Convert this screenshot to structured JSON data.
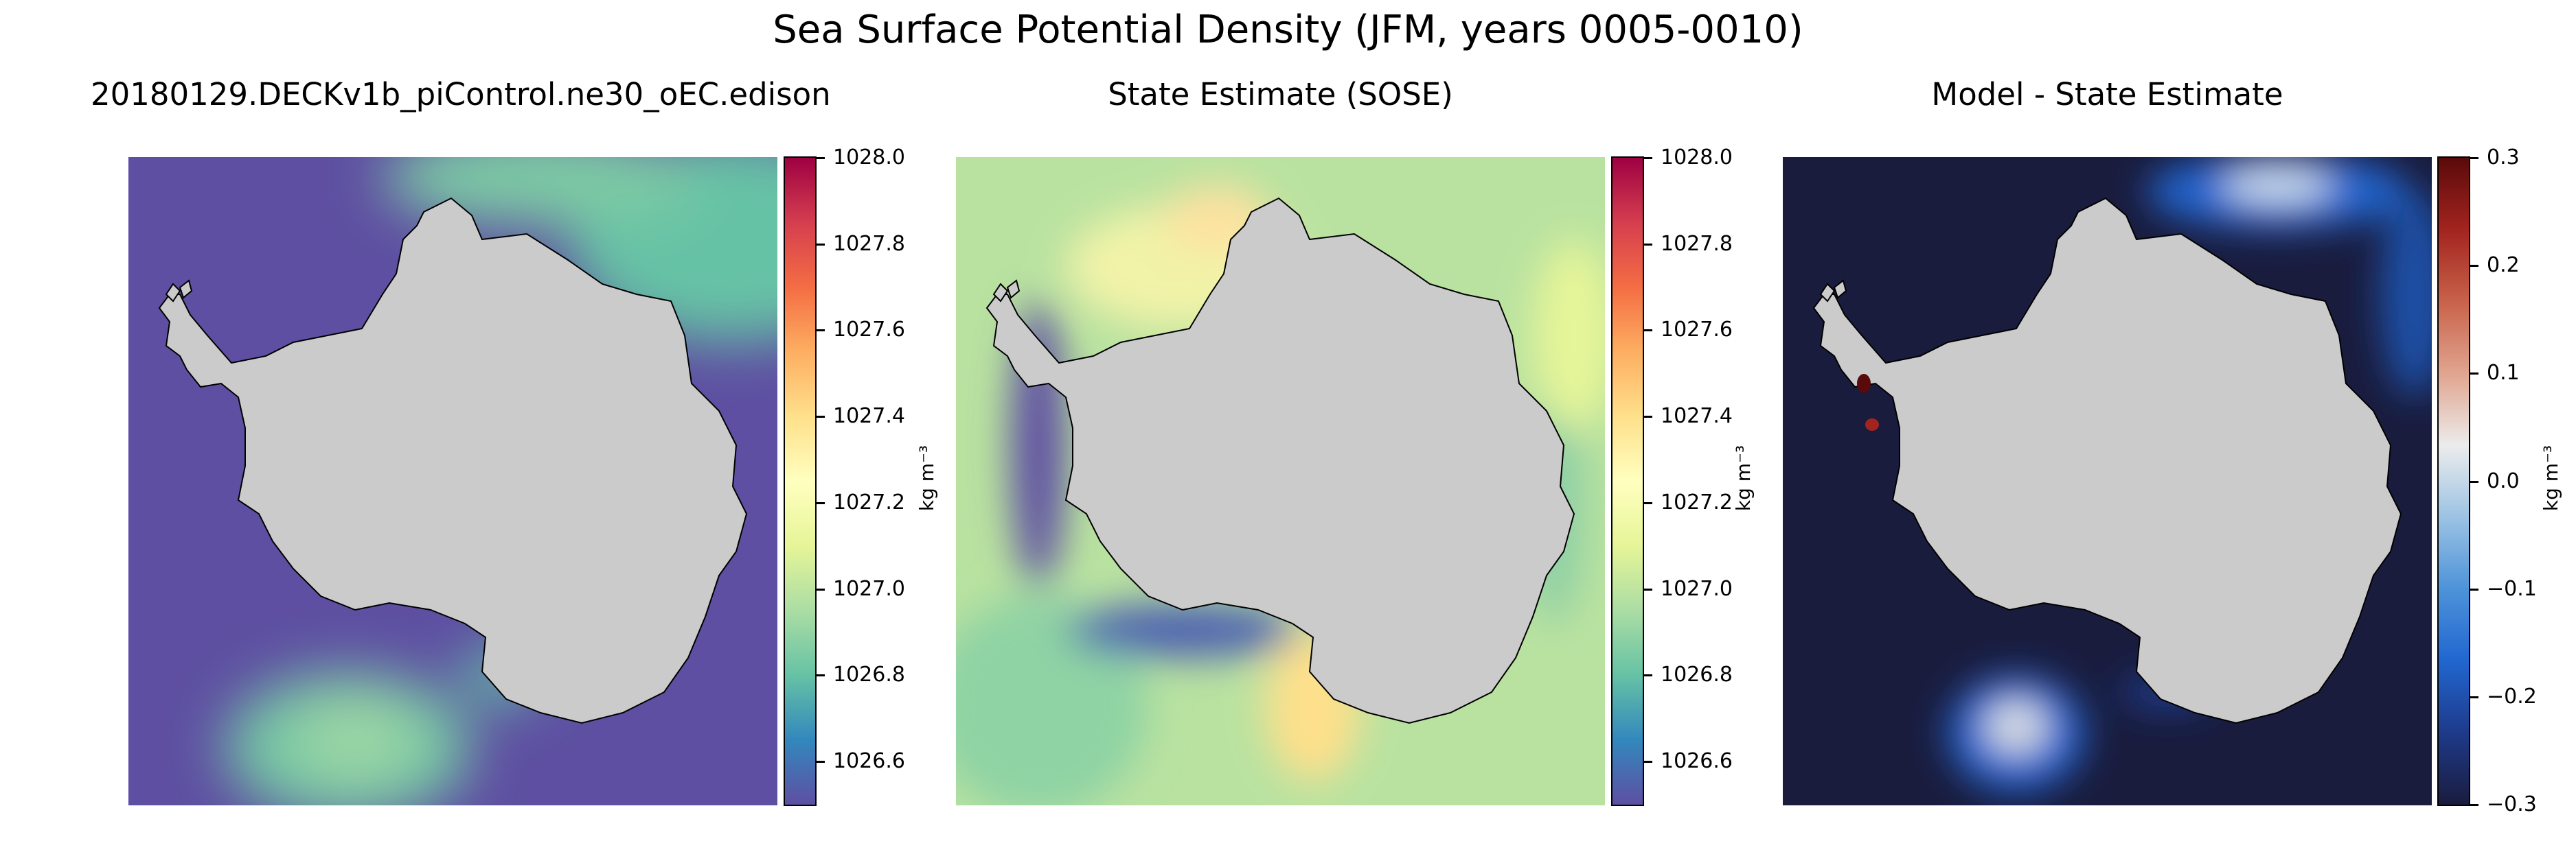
{
  "figure": {
    "suptitle": "Sea Surface Potential Density (JFM, years 0005-0010)"
  },
  "colors": {
    "land": "#cbcbcb",
    "coast": "#000000",
    "density_scale": [
      "#5e4fa2",
      "#3288bd",
      "#66c2a5",
      "#abdda4",
      "#e6f598",
      "#ffffbf",
      "#fee08b",
      "#fdae61",
      "#f46d43",
      "#d53e4f",
      "#9e0142"
    ],
    "diff_scale": [
      "#1a1c3e",
      "#1e3a8a",
      "#2166d0",
      "#4d93d9",
      "#9cc3e4",
      "#ececec",
      "#e1a48f",
      "#c8624a",
      "#a3241f",
      "#5a0a0a"
    ]
  },
  "panels": [
    {
      "title": "20180129.DECKv1b_piControl.ne30_oEC.edison",
      "colorbar": {
        "unit": "kg m⁻³",
        "ticks": [
          "1026.6",
          "1026.8",
          "1027.0",
          "1027.2",
          "1027.4",
          "1027.6",
          "1027.8",
          "1028.0"
        ]
      }
    },
    {
      "title": "State Estimate (SOSE)",
      "colorbar": {
        "unit": "kg m⁻³",
        "ticks": [
          "1026.6",
          "1026.8",
          "1027.0",
          "1027.2",
          "1027.4",
          "1027.6",
          "1027.8",
          "1028.0"
        ]
      }
    },
    {
      "title": "Model - State Estimate",
      "colorbar": {
        "unit": "kg m⁻³",
        "ticks": [
          "−0.3",
          "−0.2",
          "−0.1",
          "0.0",
          "0.1",
          "0.2",
          "0.3"
        ]
      }
    }
  ],
  "chart_data": [
    {
      "type": "heatmap",
      "title": "20180129.DECKv1b_piControl.ne30_oEC.edison",
      "projection": "south polar stereographic",
      "variable": "Sea Surface Potential Density",
      "unit": "kg m⁻³",
      "colormap": "Spectral_r",
      "clim": [
        1026.5,
        1028.0
      ],
      "colorbar_ticks": [
        1026.6,
        1026.8,
        1027.0,
        1027.2,
        1027.4,
        1027.6,
        1027.8,
        1028.0
      ],
      "background_value": 1026.5,
      "notable_features": [
        {
          "region": "upper-right sector",
          "value": 1026.85
        },
        {
          "region": "lower-left sector",
          "value": 1026.9
        },
        {
          "region": "Ross Sea embayment edge",
          "value": 1026.85
        }
      ]
    },
    {
      "type": "heatmap",
      "title": "State Estimate (SOSE)",
      "projection": "south polar stereographic",
      "variable": "Sea Surface Potential Density",
      "unit": "kg m⁻³",
      "colormap": "Spectral_r",
      "clim": [
        1026.5,
        1028.0
      ],
      "colorbar_ticks": [
        1026.6,
        1026.8,
        1027.0,
        1027.2,
        1027.4,
        1027.6,
        1027.8,
        1028.0
      ],
      "background_value": 1027.05,
      "notable_features": [
        {
          "region": "Weddell Sea",
          "value": 1027.35
        },
        {
          "region": "Ross Sea",
          "value": 1027.4
        },
        {
          "region": "coastal ring (western side)",
          "value": 1026.55
        }
      ]
    },
    {
      "type": "heatmap",
      "title": "Model - State Estimate",
      "projection": "south polar stereographic",
      "variable": "Sea Surface Potential Density difference",
      "unit": "kg m⁻³",
      "colormap": "balance",
      "clim": [
        -0.3,
        0.3
      ],
      "colorbar_ticks": [
        -0.3,
        -0.2,
        -0.1,
        0.0,
        0.1,
        0.2,
        0.3
      ],
      "background_value": -0.3,
      "notable_features": [
        {
          "region": "top-right band",
          "value": -0.05
        },
        {
          "region": "lower-left patch",
          "value": 0.05
        },
        {
          "region": "Antarctic Peninsula coast",
          "value": 0.3
        }
      ]
    }
  ]
}
